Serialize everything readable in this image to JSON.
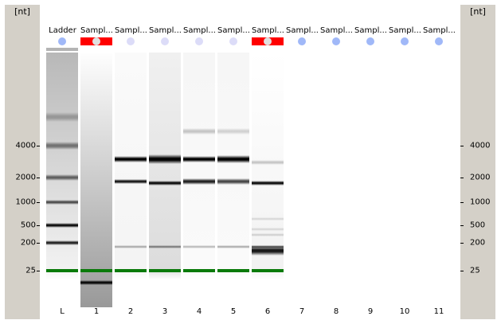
{
  "axis": {
    "unit": "[nt]",
    "ticks": [
      {
        "nt": 4000,
        "label": "4000"
      },
      {
        "nt": 2000,
        "label": "2000"
      },
      {
        "nt": 1000,
        "label": "1000"
      },
      {
        "nt": 500,
        "label": "500"
      },
      {
        "nt": 200,
        "label": "200"
      },
      {
        "nt": 25,
        "label": "25"
      }
    ]
  },
  "colors": {
    "marker": "#0a7a0a",
    "selected": "#ff0000",
    "dot_active": "#a0b8f8",
    "dot_inactive": "#dcdcf8",
    "panel": "#d4d0c8"
  },
  "lanes": [
    {
      "header": "Ladder",
      "number": "L",
      "selected": false,
      "dot": "active",
      "bg": [
        "#b8b8b8",
        "#f2f2f2"
      ],
      "bands": [
        {
          "nt": 7500,
          "s": 0.25,
          "w": 6
        },
        {
          "nt": 4000,
          "s": 0.45,
          "w": 5
        },
        {
          "nt": 2000,
          "s": 0.55,
          "w": 4
        },
        {
          "nt": 1000,
          "s": 0.65,
          "w": 3
        },
        {
          "nt": 500,
          "s": 0.95,
          "w": 3
        },
        {
          "nt": 200,
          "s": 0.85,
          "w": 3
        }
      ],
      "marker": true
    },
    {
      "header": "Sampl...",
      "number": "1",
      "selected": true,
      "dot": "inactive",
      "bg": [
        "#fefefe",
        "#999999"
      ],
      "bands": [
        {
          "nt": 10,
          "s": 0.95,
          "w": 3
        }
      ],
      "marker": true
    },
    {
      "header": "Sampl...",
      "number": "2",
      "selected": false,
      "dot": "inactive",
      "bg": [
        "#fafafa",
        "#f4f4f4"
      ],
      "bands": [
        {
          "nt": 3000,
          "s": 1,
          "w": 4
        },
        {
          "nt": 1800,
          "s": 0.9,
          "w": 3
        },
        {
          "nt": 150,
          "s": 0.3,
          "w": 2
        }
      ],
      "marker": true
    },
    {
      "header": "Sampl...",
      "number": "3",
      "selected": false,
      "dot": "inactive",
      "bg": [
        "#f0f0f0",
        "#dcdcdc"
      ],
      "bands": [
        {
          "nt": 3000,
          "s": 1,
          "w": 6
        },
        {
          "nt": 1700,
          "s": 0.95,
          "w": 3
        },
        {
          "nt": 150,
          "s": 0.45,
          "w": 2
        }
      ],
      "marker": true
    },
    {
      "header": "Sampl...",
      "number": "4",
      "selected": false,
      "dot": "inactive",
      "bg": [
        "#f6f6f6",
        "#fafafa"
      ],
      "bands": [
        {
          "nt": 5500,
          "s": 0.2,
          "w": 4
        },
        {
          "nt": 3000,
          "s": 1,
          "w": 4
        },
        {
          "nt": 1800,
          "s": 0.85,
          "w": 4
        },
        {
          "nt": 150,
          "s": 0.25,
          "w": 2
        }
      ],
      "marker": true
    },
    {
      "header": "Sampl...",
      "number": "5",
      "selected": false,
      "dot": "inactive",
      "bg": [
        "#f6f6f6",
        "#fafafa"
      ],
      "bands": [
        {
          "nt": 5500,
          "s": 0.15,
          "w": 4
        },
        {
          "nt": 3000,
          "s": 1,
          "w": 5
        },
        {
          "nt": 1800,
          "s": 0.7,
          "w": 4
        },
        {
          "nt": 150,
          "s": 0.3,
          "w": 2
        }
      ],
      "marker": true
    },
    {
      "header": "Sampl...",
      "number": "6",
      "selected": true,
      "dot": "inactive",
      "bg": [
        "#ffffff",
        "#f2f2f2"
      ],
      "bands": [
        {
          "nt": 2800,
          "s": 0.2,
          "w": 3
        },
        {
          "nt": 1700,
          "s": 0.95,
          "w": 3
        },
        {
          "nt": 600,
          "s": 0.12,
          "w": 2
        },
        {
          "nt": 400,
          "s": 0.12,
          "w": 2
        },
        {
          "nt": 300,
          "s": 0.15,
          "w": 2
        },
        {
          "nt": 150,
          "s": 0.6,
          "w": 2
        },
        {
          "nt": 110,
          "s": 0.9,
          "w": 6
        }
      ],
      "marker": true
    },
    {
      "header": "Sampl...",
      "number": "7",
      "selected": false,
      "dot": "active",
      "bg": [
        "#ffffff",
        "#ffffff"
      ],
      "bands": [],
      "marker": false
    },
    {
      "header": "Sampl...",
      "number": "8",
      "selected": false,
      "dot": "active",
      "bg": [
        "#ffffff",
        "#ffffff"
      ],
      "bands": [],
      "marker": false
    },
    {
      "header": "Sampl...",
      "number": "9",
      "selected": false,
      "dot": "active",
      "bg": [
        "#ffffff",
        "#ffffff"
      ],
      "bands": [],
      "marker": false
    },
    {
      "header": "Sampl...",
      "number": "10",
      "selected": false,
      "dot": "active",
      "bg": [
        "#ffffff",
        "#ffffff"
      ],
      "bands": [],
      "marker": false
    },
    {
      "header": "Sampl...",
      "number": "11",
      "selected": false,
      "dot": "active",
      "bg": [
        "#ffffff",
        "#ffffff"
      ],
      "bands": [],
      "marker": false
    }
  ]
}
